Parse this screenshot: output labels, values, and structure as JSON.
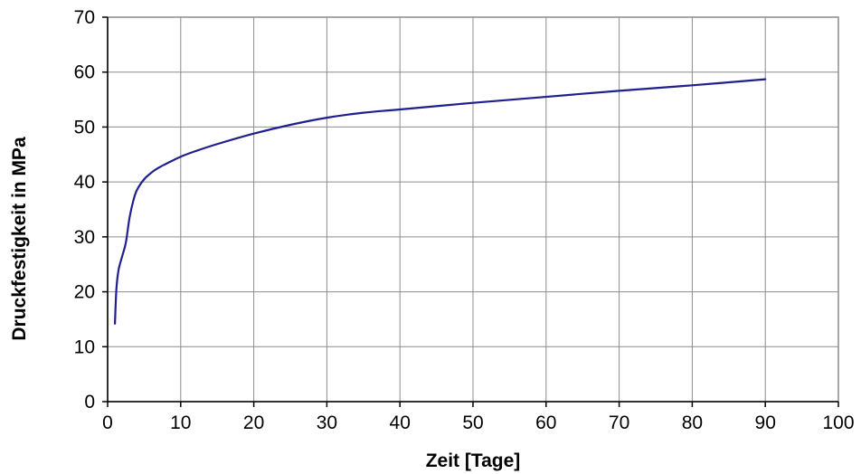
{
  "chart_data": {
    "type": "line",
    "title": "",
    "xlabel": "Zeit [Tage]",
    "ylabel": "Druckfestigkeit in MPa",
    "xlim": [
      0,
      100
    ],
    "ylim": [
      0,
      70
    ],
    "xticks": [
      0,
      10,
      20,
      30,
      40,
      50,
      60,
      70,
      80,
      90,
      100
    ],
    "yticks": [
      0,
      10,
      20,
      30,
      40,
      50,
      60,
      70
    ],
    "grid": true,
    "legend": "none",
    "series": [
      {
        "color": "#1f1f8f",
        "x": [
          1,
          1.2,
          1.5,
          2,
          2.5,
          3,
          3.5,
          4,
          5,
          6,
          7,
          8,
          10,
          12,
          15,
          20,
          25,
          30,
          35,
          40,
          50,
          60,
          70,
          80,
          90
        ],
        "y": [
          14.2,
          20.5,
          24.0,
          26.5,
          29.0,
          33.5,
          36.5,
          38.5,
          40.5,
          41.7,
          42.6,
          43.3,
          44.6,
          45.6,
          46.9,
          48.8,
          50.4,
          51.7,
          52.6,
          53.2,
          54.4,
          55.5,
          56.6,
          57.6,
          58.7
        ]
      }
    ]
  }
}
